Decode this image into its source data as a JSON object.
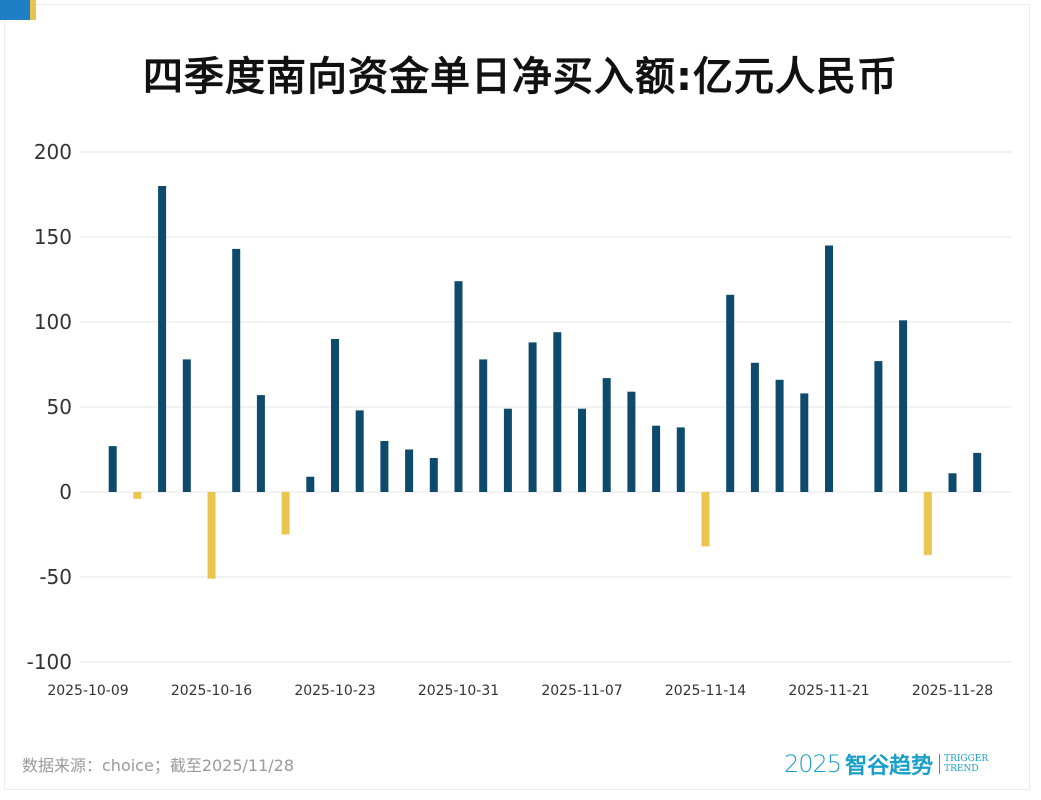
{
  "chart_data": {
    "type": "bar",
    "title": "四季度南向资金单日净买入额:亿元人民币",
    "xlabel": "",
    "ylabel": "",
    "ylim": [
      -100,
      200
    ],
    "yticks": [
      "200",
      "150",
      "100",
      "50",
      "0",
      "-50",
      "-100"
    ],
    "xtick_labels": [
      "2025-10-09",
      "2025-10-16",
      "2025-10-23",
      "2025-10-31",
      "2025-11-07",
      "2025-11-14",
      "2025-11-21",
      "2025-11-28"
    ],
    "xtick_every": 5,
    "grid": true,
    "values": [
      null,
      27,
      -4,
      180,
      78,
      -51,
      143,
      57,
      -25,
      9,
      90,
      48,
      30,
      25,
      20,
      124,
      78,
      49,
      88,
      94,
      49,
      67,
      59,
      39,
      38,
      -32,
      116,
      76,
      66,
      58,
      145,
      null,
      77,
      101,
      -37,
      11,
      23
    ],
    "colors": {
      "positive": "#0d4a6b",
      "negative": "#e8c64f",
      "grid": "#e6e6e6"
    }
  },
  "footer": {
    "source": "数据来源：choice；截至2025/11/28",
    "logo_year": "2025",
    "logo_cn": "智谷趋势",
    "logo_en_1": "TRIGGER",
    "logo_en_2": "TREND"
  }
}
